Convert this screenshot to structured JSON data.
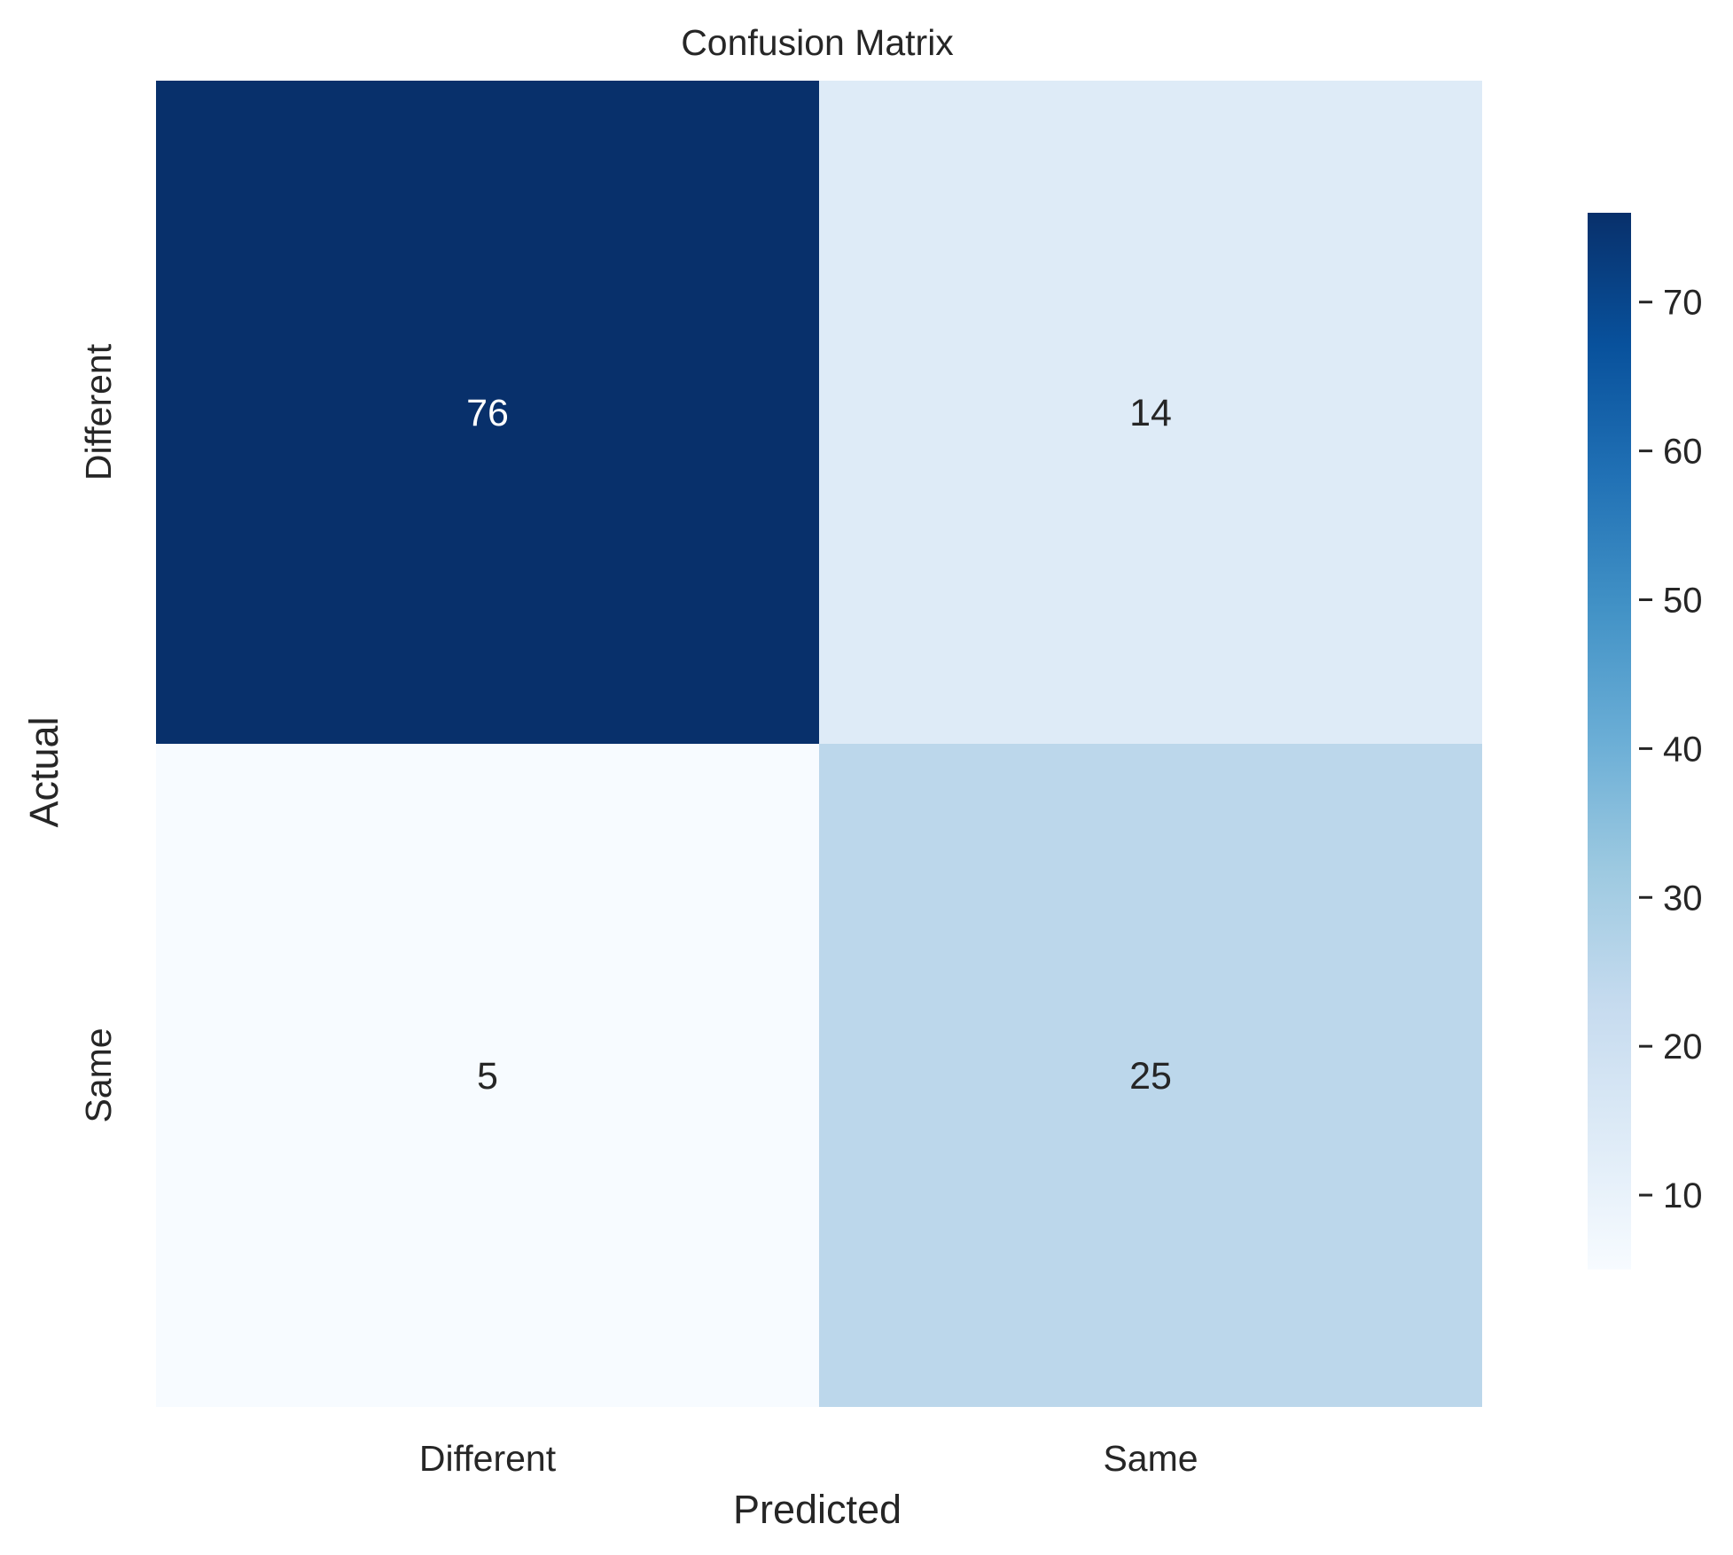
{
  "chart_data": {
    "type": "heatmap",
    "title": "Confusion Matrix",
    "xlabel": "Predicted",
    "ylabel": "Actual",
    "x_categories": [
      "Different",
      "Same"
    ],
    "y_categories": [
      "Different",
      "Same"
    ],
    "values": [
      [
        76,
        14
      ],
      [
        5,
        25
      ]
    ],
    "colormap": "Blues",
    "colorbar": {
      "min": 5,
      "max": 76,
      "ticks": [
        10,
        20,
        30,
        40,
        50,
        60,
        70
      ],
      "tick_labels": [
        "10",
        "20",
        "30",
        "40",
        "50",
        "60",
        "70"
      ]
    },
    "colors": {
      "dark_text": "#262626",
      "light_text": "#ffffff"
    }
  }
}
